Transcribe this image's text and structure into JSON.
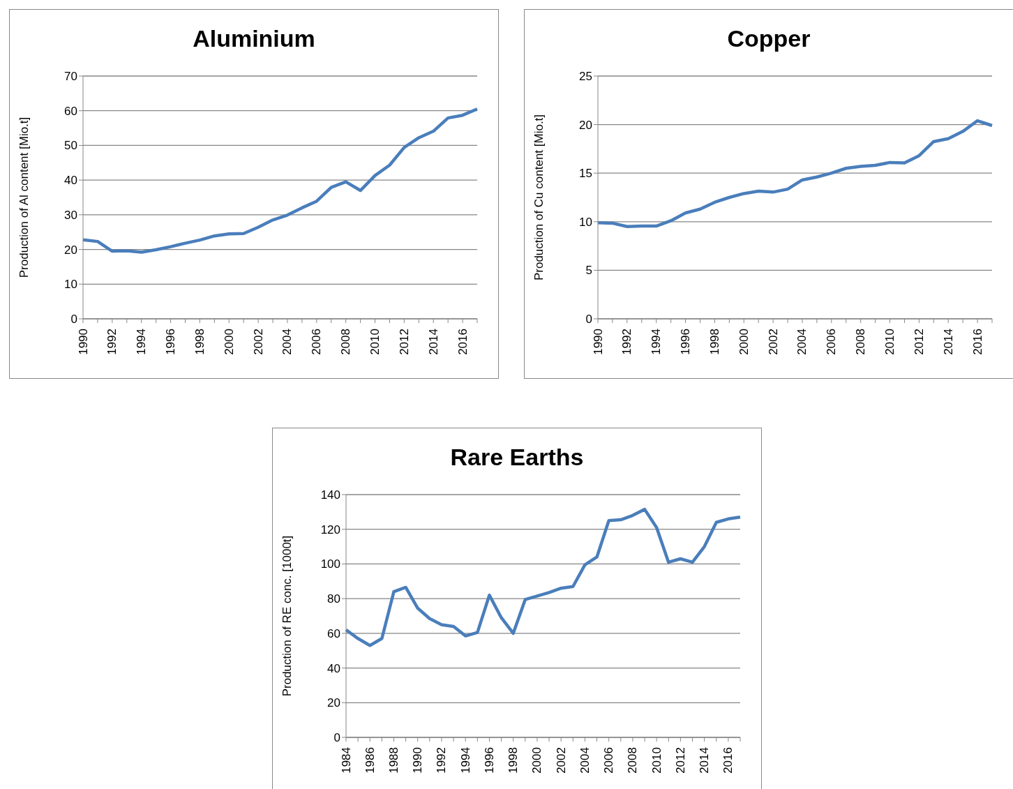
{
  "chart_data": [
    {
      "type": "line",
      "title": "Aluminium",
      "ylabel": "Production of Al content [Mio.t]",
      "categories": [
        "1990",
        null,
        "1992",
        null,
        "1994",
        null,
        "1996",
        null,
        "1998",
        null,
        "2000",
        null,
        "2002",
        null,
        "2004",
        null,
        "2006",
        null,
        "2008",
        null,
        "2010",
        null,
        "2012",
        null,
        "2014",
        null,
        "2016",
        null
      ],
      "series": [
        {
          "color": "#4a7ebb",
          "values": [
            22.8,
            22.3,
            19.5,
            19.6,
            19.2,
            19.9,
            20.8,
            21.8,
            22.7,
            23.9,
            24.5,
            24.6,
            26.4,
            28.5,
            29.9,
            32.0,
            33.9,
            37.9,
            39.5,
            37.0,
            41.3,
            44.3,
            49.4,
            52.2,
            54.1,
            57.9,
            58.7,
            60.5
          ]
        }
      ],
      "ylim": [
        0,
        70
      ],
      "yticks": [
        0,
        10,
        20,
        30,
        40,
        50,
        60,
        70
      ],
      "grid": "y",
      "marker": "none",
      "line_style": "solid"
    },
    {
      "type": "line",
      "title": "Copper",
      "ylabel": "Production of Cu content [Mio.t]",
      "categories": [
        "1990",
        null,
        "1992",
        null,
        "1994",
        null,
        "1996",
        null,
        "1998",
        null,
        "2000",
        null,
        "2002",
        null,
        "2004",
        null,
        "2006",
        null,
        "2008",
        null,
        "2010",
        null,
        "2012",
        null,
        "2014",
        null,
        "2016",
        null
      ],
      "series": [
        {
          "color": "#4a7ebb",
          "values": [
            9.9,
            9.85,
            9.5,
            9.55,
            9.55,
            10.1,
            10.9,
            11.3,
            12.0,
            12.5,
            12.9,
            13.15,
            13.05,
            13.35,
            14.3,
            14.6,
            15.0,
            15.5,
            15.7,
            15.8,
            16.1,
            16.05,
            16.8,
            18.25,
            18.55,
            19.3,
            20.4,
            19.9
          ]
        }
      ],
      "ylim": [
        0,
        25
      ],
      "yticks": [
        0,
        5,
        10,
        15,
        20,
        25
      ],
      "grid": "y",
      "marker": "none",
      "line_style": "solid"
    },
    {
      "type": "line",
      "title": "Rare Earths",
      "ylabel": "Production of RE conc. [1000t]",
      "categories": [
        "1984",
        null,
        "1986",
        null,
        "1988",
        null,
        "1990",
        null,
        "1992",
        null,
        "1994",
        null,
        "1996",
        null,
        "1998",
        null,
        "2000",
        null,
        "2002",
        null,
        "2004",
        null,
        "2006",
        null,
        "2008",
        null,
        "2010",
        null,
        "2012",
        null,
        "2014",
        null,
        "2016",
        null
      ],
      "series": [
        {
          "color": "#4a7ebb",
          "values": [
            62,
            57,
            53,
            57,
            84,
            86.5,
            74.5,
            68.5,
            65,
            64,
            58.5,
            60.5,
            82,
            69,
            60,
            79.5,
            81.5,
            83.5,
            86,
            87,
            99.5,
            104,
            125,
            125.5,
            128,
            131.5,
            121,
            101,
            103,
            101,
            110,
            124,
            126,
            127
          ]
        }
      ],
      "ylim": [
        0,
        140
      ],
      "yticks": [
        0,
        20,
        40,
        60,
        80,
        100,
        120,
        140
      ],
      "grid": "y",
      "marker": "none",
      "line_style": "solid"
    }
  ]
}
